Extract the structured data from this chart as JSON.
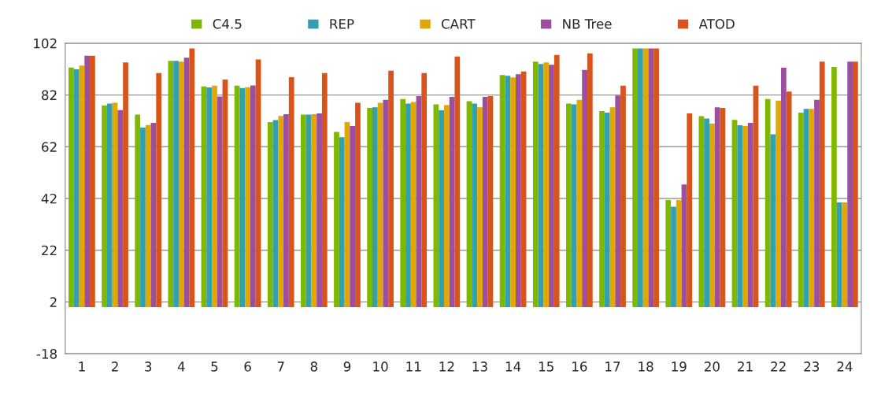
{
  "chart_data": {
    "type": "bar",
    "categories": [
      "1",
      "2",
      "3",
      "4",
      "5",
      "6",
      "7",
      "8",
      "9",
      "10",
      "11",
      "12",
      "13",
      "14",
      "15",
      "16",
      "17",
      "18",
      "19",
      "20",
      "21",
      "22",
      "23",
      "24"
    ],
    "series": [
      {
        "name": "C4.5",
        "color": "#7fb800",
        "values": [
          92.6,
          77.9,
          74.4,
          95.2,
          85.3,
          85.6,
          71.5,
          74.4,
          67.7,
          77.0,
          80.4,
          78.4,
          79.6,
          89.7,
          94.9,
          78.7,
          75.8,
          100,
          41.4,
          73.8,
          72.4,
          80.4,
          75.2,
          92.8
        ]
      },
      {
        "name": "REP",
        "color": "#31a0b0",
        "values": [
          91.9,
          78.7,
          69.4,
          95.2,
          84.9,
          84.7,
          72.3,
          74.4,
          65.7,
          77.2,
          78.7,
          76.1,
          78.7,
          89.4,
          94.0,
          78.4,
          75.2,
          100,
          38.8,
          72.9,
          70.3,
          66.8,
          76.6,
          40.5
        ]
      },
      {
        "name": "CART",
        "color": "#e0a800",
        "values": [
          93.4,
          79.0,
          70.4,
          94.9,
          85.6,
          85.0,
          73.9,
          74.6,
          71.5,
          79.0,
          79.3,
          78.1,
          77.2,
          88.8,
          94.6,
          80.1,
          77.2,
          100,
          41.4,
          70.9,
          70.0,
          79.8,
          76.6,
          40.5
        ]
      },
      {
        "name": "NB Tree",
        "color": "#9b4f9e",
        "values": [
          97.2,
          76.2,
          71.2,
          96.4,
          81.4,
          85.7,
          74.6,
          74.9,
          70.0,
          80.1,
          81.6,
          81.3,
          81.3,
          90.0,
          93.7,
          91.7,
          81.8,
          100,
          47.4,
          77.2,
          71.2,
          92.5,
          80.1,
          94.9
        ]
      },
      {
        "name": "ATOD",
        "color": "#d9541a",
        "values": [
          97.2,
          94.6,
          90.5,
          100,
          88.0,
          95.7,
          88.9,
          90.5,
          79.0,
          91.4,
          90.5,
          96.9,
          81.6,
          91.1,
          97.5,
          98.1,
          85.6,
          100,
          74.9,
          77.0,
          85.6,
          83.3,
          94.9,
          94.9
        ]
      }
    ],
    "ylim": [
      -18,
      102
    ],
    "yticks": [
      -18,
      2,
      22,
      42,
      62,
      82,
      102
    ],
    "grid": "y",
    "legend": "top"
  }
}
